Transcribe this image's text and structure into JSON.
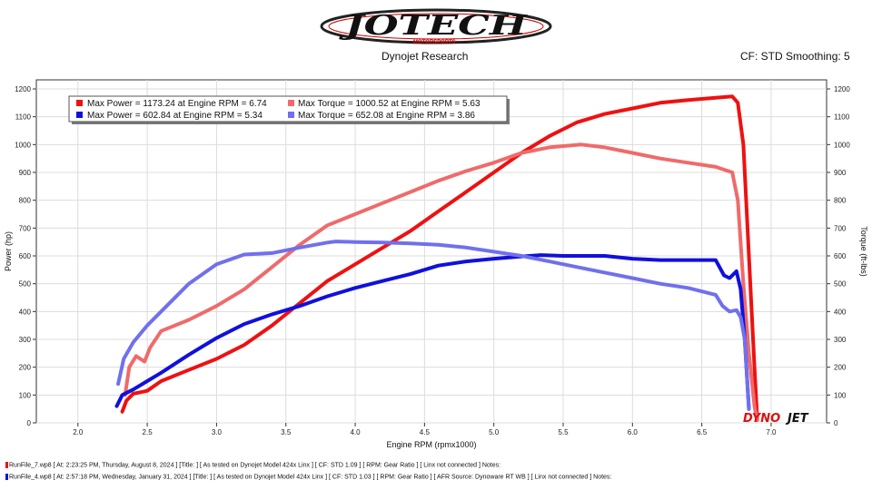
{
  "header": {
    "logo_text": "JOTECH",
    "logo_sub": "MOTORSPORTS",
    "subtitle": "Dynojet Research",
    "right_info": "CF: STD Smoothing: 5",
    "watermark_a": "DYNO",
    "watermark_b": "JET"
  },
  "chart_data": {
    "type": "line",
    "xlabel": "Engine RPM (rpmx1000)",
    "ylabel": "Power (hp)",
    "y2label": "Torque (ft-lbs)",
    "xlim": [
      1.7,
      7.4
    ],
    "ylim": [
      0,
      1200
    ],
    "y2lim": [
      0,
      1200
    ],
    "xticks": [
      "2.0",
      "2.5",
      "3.0",
      "3.5",
      "4.0",
      "4.5",
      "5.0",
      "5.5",
      "6.0",
      "6.5",
      "7.0"
    ],
    "yticks": [
      "0",
      "100",
      "200",
      "300",
      "400",
      "500",
      "600",
      "700",
      "800",
      "900",
      "1000",
      "1100",
      "1200"
    ],
    "grid": true,
    "legend_position": "top-left",
    "legend": [
      {
        "text": "Max Power = 1173.24 at Engine RPM = 6.74",
        "color": "#ee1111"
      },
      {
        "text": "Max Torque = 1000.52 at Engine RPM = 5.63",
        "color": "#f06a6a"
      },
      {
        "text": "Max Power = 602.84 at Engine RPM = 5.34",
        "color": "#1010dd"
      },
      {
        "text": "Max Torque = 652.08 at Engine RPM = 3.86",
        "color": "#7070ee"
      }
    ],
    "series": [
      {
        "color": "#ee1111",
        "kind": "power",
        "x": [
          2.32,
          2.35,
          2.4,
          2.45,
          2.5,
          2.6,
          2.8,
          3.0,
          3.2,
          3.4,
          3.6,
          3.8,
          4.0,
          4.2,
          4.4,
          4.6,
          4.8,
          5.0,
          5.2,
          5.4,
          5.6,
          5.8,
          6.0,
          6.2,
          6.4,
          6.6,
          6.72,
          6.76,
          6.8,
          6.84,
          6.88,
          6.9
        ],
        "y": [
          40,
          80,
          105,
          110,
          115,
          150,
          190,
          230,
          280,
          350,
          430,
          510,
          570,
          630,
          690,
          760,
          830,
          900,
          970,
          1030,
          1080,
          1110,
          1130,
          1150,
          1160,
          1168,
          1173,
          1150,
          1000,
          600,
          200,
          10
        ]
      },
      {
        "color": "#f06a6a",
        "kind": "torque",
        "x": [
          2.34,
          2.37,
          2.42,
          2.48,
          2.52,
          2.6,
          2.8,
          3.0,
          3.2,
          3.4,
          3.6,
          3.8,
          4.0,
          4.2,
          4.4,
          4.6,
          4.8,
          5.0,
          5.2,
          5.4,
          5.63,
          5.8,
          6.0,
          6.2,
          6.4,
          6.6,
          6.72,
          6.76,
          6.8,
          6.84,
          6.88,
          6.9
        ],
        "y": [
          100,
          200,
          240,
          220,
          270,
          330,
          370,
          420,
          480,
          560,
          640,
          710,
          750,
          790,
          830,
          870,
          905,
          935,
          970,
          990,
          1000,
          990,
          970,
          950,
          935,
          920,
          900,
          800,
          500,
          250,
          60,
          10
        ]
      },
      {
        "color": "#1010dd",
        "kind": "power",
        "x": [
          2.28,
          2.32,
          2.4,
          2.5,
          2.6,
          2.8,
          3.0,
          3.2,
          3.4,
          3.6,
          3.8,
          4.0,
          4.2,
          4.4,
          4.6,
          4.8,
          5.0,
          5.2,
          5.34,
          5.5,
          5.8,
          6.0,
          6.2,
          6.4,
          6.6,
          6.66,
          6.7,
          6.75,
          6.78,
          6.81,
          6.84
        ],
        "y": [
          60,
          100,
          120,
          150,
          180,
          245,
          305,
          355,
          390,
          420,
          455,
          485,
          510,
          535,
          565,
          580,
          590,
          598,
          603,
          600,
          600,
          590,
          585,
          585,
          585,
          530,
          520,
          545,
          480,
          300,
          50
        ]
      },
      {
        "color": "#7070ee",
        "kind": "torque",
        "x": [
          2.29,
          2.33,
          2.4,
          2.5,
          2.6,
          2.8,
          3.0,
          3.2,
          3.4,
          3.6,
          3.8,
          3.86,
          4.0,
          4.2,
          4.4,
          4.6,
          4.8,
          5.0,
          5.2,
          5.4,
          5.6,
          5.8,
          6.0,
          6.2,
          6.4,
          6.6,
          6.65,
          6.7,
          6.75,
          6.78,
          6.81,
          6.84
        ],
        "y": [
          140,
          230,
          290,
          350,
          400,
          500,
          570,
          605,
          610,
          630,
          648,
          652,
          650,
          648,
          645,
          640,
          630,
          615,
          600,
          580,
          560,
          540,
          520,
          500,
          485,
          460,
          420,
          400,
          405,
          380,
          300,
          50
        ]
      }
    ]
  },
  "footer": {
    "line1": "RunFile_7.wp8 [ At: 2:23:25 PM, Thursday, August 8, 2024 ] [Title: ] [ As tested on Dynojet Model 424x Linx ] [ CF: STD 1.09 ] [ RPM: Gear Ratio ] [ Linx not connected ] Notes:",
    "line2": "RunFile_4.wp8 [ At: 2:57:18 PM, Wednesday, January 31, 2024 ] [Title: ] [ As tested on Dynojet Model 424x Linx ] [ CF: STD 1.03 ] [ RPM: Gear Ratio ] [ AFR Source: Dynoware RT WB ] [ Linx not connected ] Notes:",
    "line1_color": "#ee1111",
    "line2_color": "#1010dd"
  }
}
